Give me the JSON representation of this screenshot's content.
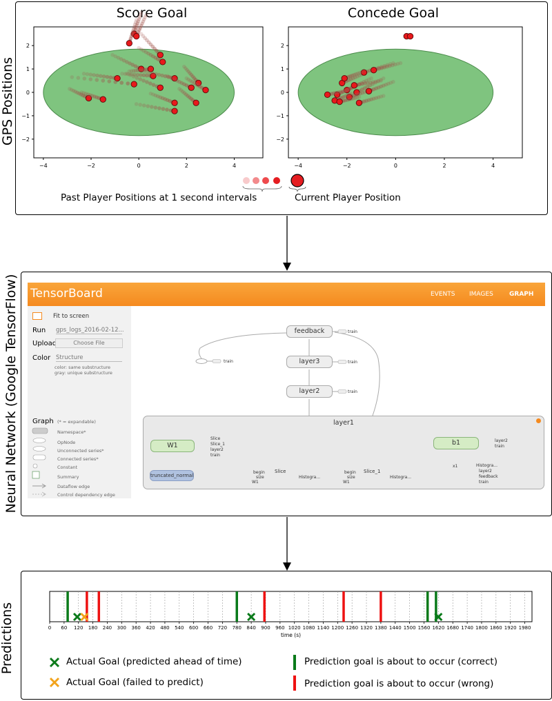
{
  "panels": {
    "gps_label": "GPS Positions",
    "nn_label": "Neural Network (Google TensorFlow)",
    "pred_label": "Predictions"
  },
  "gps": {
    "score_title": "Score Goal",
    "concede_title": "Concede Goal",
    "x_ticks": [
      "−4",
      "−2",
      "0",
      "2",
      "4"
    ],
    "y_ticks": [
      "2",
      "1",
      "0",
      "−1",
      "−2"
    ],
    "legend_past": "Past Player Positions at 1 second intervals",
    "legend_current": "Current Player Position",
    "colors": {
      "pitch": "#7fc47f",
      "player": "#e8191c",
      "trail": "#a0524a"
    }
  },
  "tensorboard": {
    "title": "TensorBoard",
    "nav": [
      "EVENTS",
      "IMAGES",
      "GRAPH"
    ],
    "fit_to_screen": "Fit to screen",
    "run_label": "Run",
    "run_value": "gps_logs_2016-02-12...",
    "upload_label": "Upload",
    "choose_file": "Choose File",
    "color_label": "Color",
    "color_value": "Structure",
    "color_note1": "color: same substructure",
    "color_note2": "gray: unique substructure",
    "graph_label": "Graph",
    "graph_note": "(* = expandable)",
    "legend_items": [
      "Namespace*",
      "OpNode",
      "Unconnected series*",
      "Connected series*",
      "Constant",
      "Summary",
      "Dataflow edge",
      "Control dependency edge"
    ],
    "nodes": {
      "feedback": "feedback",
      "layer3": "layer3",
      "layer2": "layer2",
      "layer1": "layer1",
      "w1": "W1",
      "b1": "b1",
      "truncated": "truncated_normal",
      "slice": "Slice",
      "slice1": "Slice_1",
      "x1": "x1",
      "train": "train",
      "histogram": "Histogra...",
      "w1_outputs": [
        "Slice",
        "Slice_1",
        "layer2",
        "train"
      ],
      "b1_outputs": [
        "layer2",
        "train"
      ],
      "x1_outputs": [
        "Histogra...",
        "layer2",
        "feedback",
        "train"
      ],
      "begin": "begin",
      "size": "size",
      "w1_small": "W1"
    },
    "colors": {
      "header": "#f7941d",
      "namespace": "#d5ecc5",
      "truncated": "#b0c2e0"
    }
  },
  "predictions": {
    "time_ticks": [
      "0",
      "60",
      "120",
      "180",
      "240",
      "300",
      "360",
      "420",
      "480",
      "540",
      "600",
      "660",
      "720",
      "780",
      "840",
      "900",
      "960",
      "1020",
      "1080",
      "1140",
      "1200",
      "1260",
      "1320",
      "1380",
      "1440",
      "1500",
      "1560",
      "1620",
      "1680",
      "1740",
      "1800",
      "1860",
      "1920",
      "1980"
    ],
    "xlabel": "time (s)",
    "correct_predictions_s": [
      75,
      780,
      1575,
      1610
    ],
    "wrong_predictions_s": [
      155,
      205,
      895,
      1225,
      1380
    ],
    "goals_predicted_s": [
      115,
      840,
      1620
    ],
    "goals_failed_s": [
      145
    ],
    "legend": {
      "goal_predicted": "Actual Goal (predicted ahead of time)",
      "goal_failed": "Actual Goal (failed to predict)",
      "pred_correct": "Prediction goal is about to occur (correct)",
      "pred_wrong": "Prediction goal is about to occur (wrong)"
    },
    "colors": {
      "correct": "#0a7a1a",
      "wrong": "#ee1111",
      "failed": "#f2a31b"
    }
  }
}
